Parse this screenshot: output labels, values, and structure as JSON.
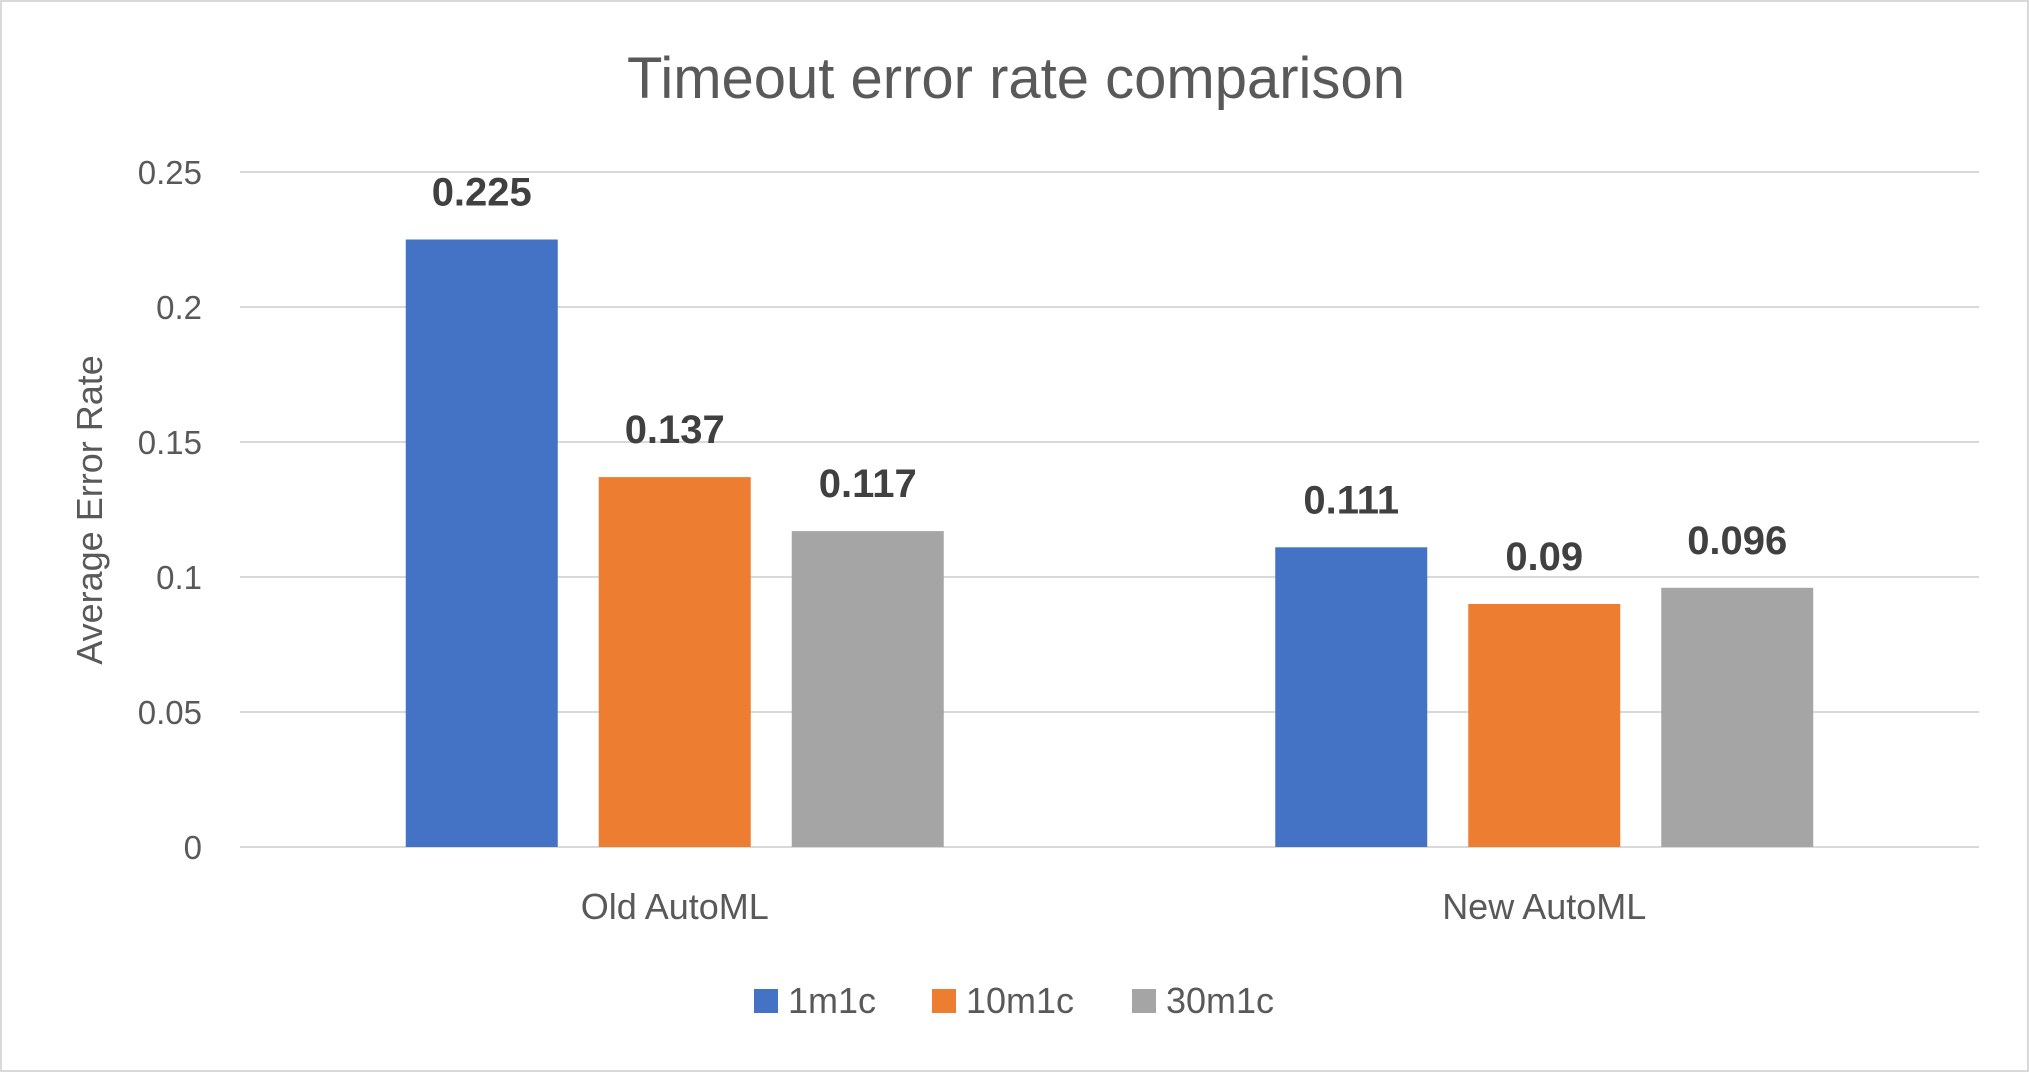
{
  "chart_data": {
    "type": "bar",
    "title": "Timeout error rate comparison",
    "xlabel": "",
    "ylabel": "Average Error Rate",
    "categories": [
      "Old AutoML",
      "New AutoML"
    ],
    "series": [
      {
        "name": "1m1c",
        "color": "#4472C4",
        "values": [
          0.225,
          0.111
        ],
        "labels": [
          "0.225",
          "0.111"
        ]
      },
      {
        "name": "10m1c",
        "color": "#ED7D31",
        "values": [
          0.137,
          0.09
        ],
        "labels": [
          "0.137",
          "0.09"
        ]
      },
      {
        "name": "30m1c",
        "color": "#A5A5A5",
        "values": [
          0.117,
          0.096
        ],
        "labels": [
          "0.117",
          "0.096"
        ]
      }
    ],
    "ylim": [
      0,
      0.25
    ],
    "yticks": [
      0,
      0.05,
      0.1,
      0.15,
      0.2,
      0.25
    ],
    "ytick_labels": [
      "0",
      "0.05",
      "0.1",
      "0.15",
      "0.2",
      "0.25"
    ],
    "grid": true,
    "legend_position": "bottom"
  }
}
